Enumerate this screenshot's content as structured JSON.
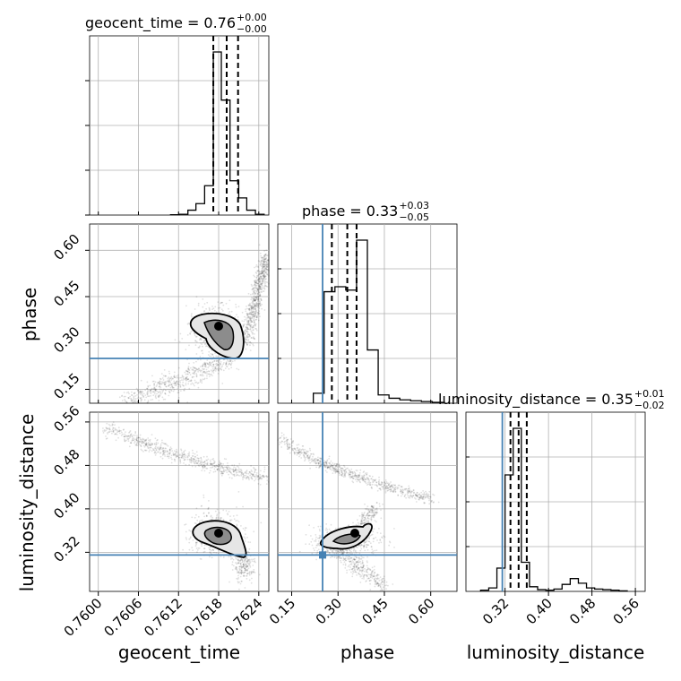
{
  "chart_data": {
    "type": "corner",
    "parameters": [
      "geocent_time",
      "phase",
      "luminosity_distance"
    ],
    "axis_labels": {
      "geocent_time": "geocent_time",
      "phase": "phase",
      "luminosity_distance": "luminosity_distance"
    },
    "titles": [
      {
        "param": "geocent_time",
        "name": "geocent_time",
        "value": "0.76",
        "plus": "+0.00",
        "minus": "−0.00"
      },
      {
        "param": "phase",
        "name": "phase",
        "value": "0.33",
        "plus": "+0.03",
        "minus": "−0.05"
      },
      {
        "param": "luminosity_distance",
        "name": "luminosity_distance",
        "value": "0.35",
        "plus": "+0.01",
        "minus": "−0.02"
      }
    ],
    "ranges": {
      "geocent_time": [
        0.75987,
        0.76255
      ],
      "phase": [
        0.105,
        0.685
      ],
      "luminosity_distance": [
        0.248,
        0.578
      ]
    },
    "ticks": {
      "geocent_time": [
        "0.7600",
        "0.7606",
        "0.7612",
        "0.7618",
        "0.7624"
      ],
      "phase": [
        "0.15",
        "0.30",
        "0.45",
        "0.60"
      ],
      "luminosity_distance": [
        "0.32",
        "0.40",
        "0.48",
        "0.56"
      ]
    },
    "truths": {
      "phase": 0.25,
      "luminosity_distance": 0.315
    },
    "truth_color": "#4682b4",
    "quantiles": {
      "geocent_time": [
        0.76172,
        0.76192,
        0.76209
      ],
      "phase": [
        0.28,
        0.33,
        0.36
      ],
      "luminosity_distance": [
        0.33,
        0.345,
        0.36
      ]
    },
    "histograms": {
      "geocent_time": {
        "edges": [
          0.76108,
          0.76121,
          0.76134,
          0.76146,
          0.76159,
          0.76172,
          0.76184,
          0.76197,
          0.7621,
          0.76222,
          0.76235,
          0.76248
        ],
        "counts": [
          2,
          5,
          30,
          70,
          180,
          1000,
          705,
          210,
          105,
          30,
          5
        ]
      },
      "phase": {
        "edges": [
          0.22,
          0.255,
          0.29,
          0.325,
          0.36,
          0.395,
          0.43,
          0.465,
          0.5,
          0.535,
          0.57,
          0.605,
          0.64
        ],
        "counts": [
          60,
          670,
          700,
          680,
          980,
          320,
          50,
          30,
          20,
          15,
          10,
          5
        ]
      },
      "luminosity_distance": {
        "edges": [
          0.275,
          0.29,
          0.305,
          0.32,
          0.335,
          0.35,
          0.365,
          0.38,
          0.395,
          0.41,
          0.425,
          0.44,
          0.455,
          0.47,
          0.485,
          0.5,
          0.515,
          0.53,
          0.545
        ],
        "counts": [
          10,
          30,
          200,
          1000,
          1400,
          250,
          40,
          15,
          10,
          20,
          60,
          110,
          70,
          30,
          20,
          15,
          10,
          5
        ]
      }
    }
  }
}
